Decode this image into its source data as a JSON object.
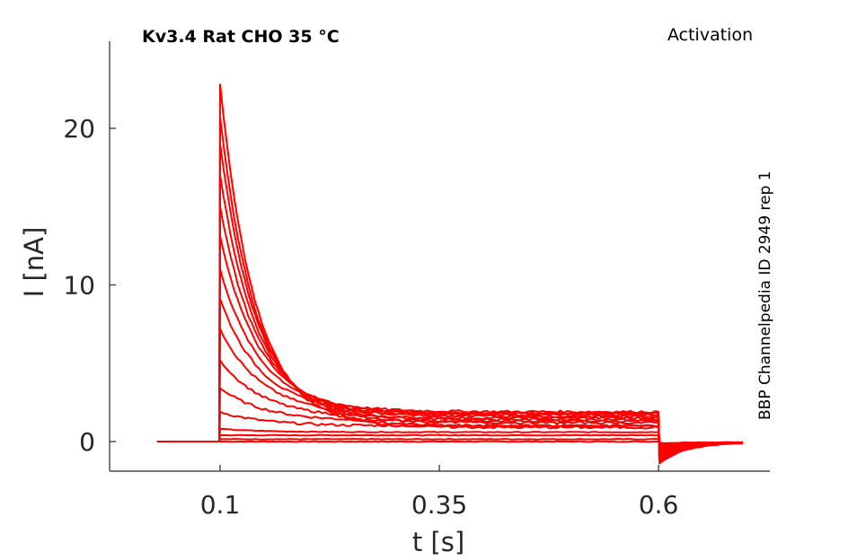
{
  "title": "Kv3.4  Rat  CHO  35 °C",
  "protocol": "Activation",
  "source": "BBP Channelpedia ID 2949 rep 1",
  "colors": {
    "trace": "#ff0000",
    "axis": "#262626"
  },
  "chart_data": {
    "type": "line",
    "xlabel": "t [s]",
    "ylabel": "I [nA]",
    "xlim": [
      0.0,
      0.75
    ],
    "ylim": [
      -2.0,
      25.0
    ],
    "xticks": [
      0.1,
      0.35,
      0.6
    ],
    "xtick_labels": [
      "0.1",
      "0.35",
      "0.6"
    ],
    "yticks": [
      0,
      10,
      20
    ],
    "ytick_labels": [
      "0",
      "10",
      "20"
    ],
    "grid": false,
    "pulse": {
      "start": 0.1,
      "end": 0.6,
      "baseline_start": 0.028,
      "trace_end": 0.697
    },
    "series": [
      {
        "peak": 0.0,
        "plateau": 0.0,
        "tail": -0.05
      },
      {
        "peak": 0.15,
        "plateau": 0.15,
        "tail": -0.1
      },
      {
        "peak": 0.4,
        "plateau": 0.4,
        "tail": -0.15
      },
      {
        "peak": 0.8,
        "plateau": 0.6,
        "tail": -0.2
      },
      {
        "peak": 1.9,
        "plateau": 1.0,
        "tail": -0.3
      },
      {
        "peak": 3.4,
        "plateau": 1.3,
        "tail": -0.4
      },
      {
        "peak": 5.2,
        "plateau": 1.5,
        "tail": -0.5
      },
      {
        "peak": 7.2,
        "plateau": 1.7,
        "tail": -0.6
      },
      {
        "peak": 9.1,
        "plateau": 1.8,
        "tail": -0.7
      },
      {
        "peak": 11.0,
        "plateau": 1.9,
        "tail": -0.8
      },
      {
        "peak": 13.1,
        "plateau": 1.8,
        "tail": -0.9
      },
      {
        "peak": 15.0,
        "plateau": 1.6,
        "tail": -1.0
      },
      {
        "peak": 17.0,
        "plateau": 1.4,
        "tail": -1.1
      },
      {
        "peak": 19.0,
        "plateau": 1.2,
        "tail": -1.2
      },
      {
        "peak": 20.7,
        "plateau": 1.0,
        "tail": -1.3
      },
      {
        "peak": 22.8,
        "plateau": 0.9,
        "tail": -1.4
      }
    ]
  }
}
